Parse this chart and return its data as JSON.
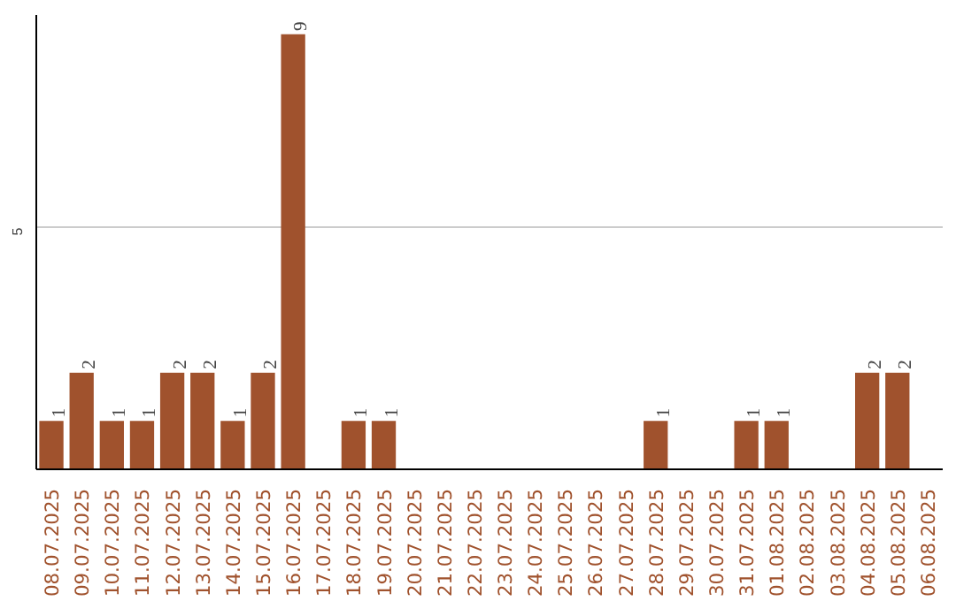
{
  "chart_data": {
    "type": "bar",
    "categories": [
      "08.07.2025",
      "09.07.2025",
      "10.07.2025",
      "11.07.2025",
      "12.07.2025",
      "13.07.2025",
      "14.07.2025",
      "15.07.2025",
      "16.07.2025",
      "17.07.2025",
      "18.07.2025",
      "19.07.2025",
      "20.07.2025",
      "21.07.2025",
      "22.07.2025",
      "23.07.2025",
      "24.07.2025",
      "25.07.2025",
      "26.07.2025",
      "27.07.2025",
      "28.07.2025",
      "29.07.2025",
      "30.07.2025",
      "31.07.2025",
      "01.08.2025",
      "02.08.2025",
      "03.08.2025",
      "04.08.2025",
      "05.08.2025",
      "06.08.2025"
    ],
    "values": [
      1,
      2,
      1,
      1,
      2,
      2,
      1,
      2,
      9,
      0,
      1,
      1,
      0,
      0,
      0,
      0,
      0,
      0,
      0,
      0,
      1,
      0,
      0,
      1,
      1,
      0,
      0,
      2,
      2,
      0
    ],
    "value_labels": [
      "1",
      "2",
      "1",
      "1",
      "2",
      "2",
      "1",
      "2",
      "9",
      null,
      "1",
      "1",
      null,
      null,
      null,
      null,
      null,
      null,
      null,
      null,
      "1",
      null,
      null,
      "1",
      "1",
      null,
      null,
      "2",
      "2",
      null
    ],
    "color": "#a0522d",
    "ylim": [
      0,
      9.4
    ],
    "yticks": [
      5
    ],
    "grid": "y"
  }
}
